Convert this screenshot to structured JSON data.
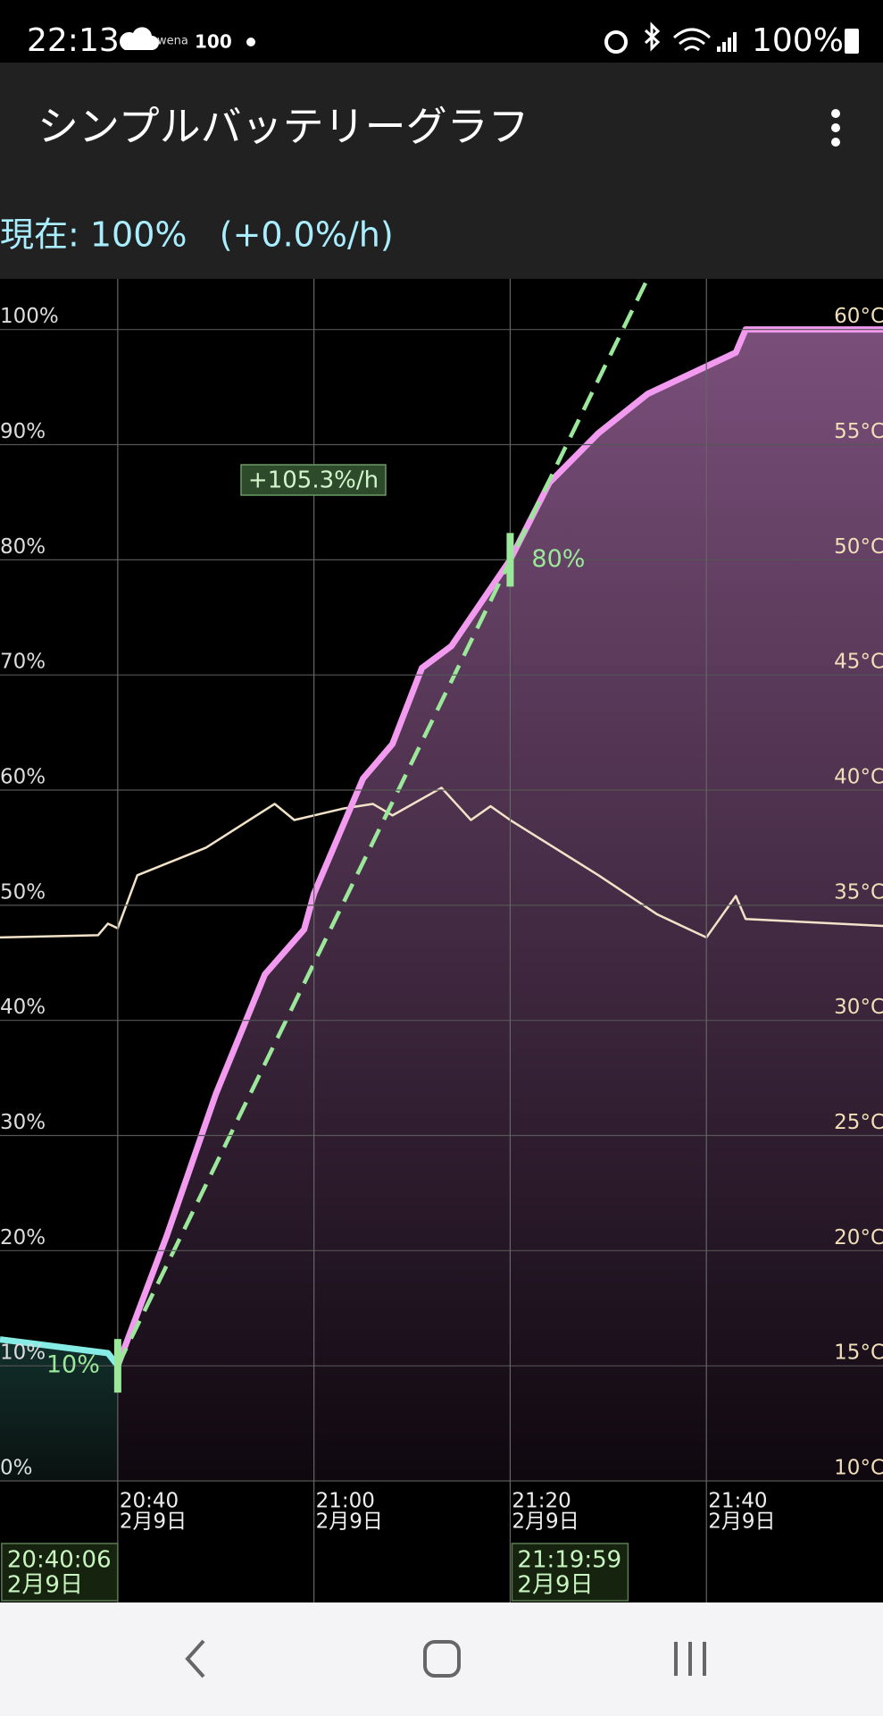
{
  "status_bar": {
    "time": "22:13",
    "wena": "wena",
    "count": "100",
    "battery": "100%"
  },
  "app_bar": {
    "title": "シンプルバッテリーグラフ"
  },
  "summary": "現在: 100%   (+0.0%/h)",
  "chart_data": {
    "type": "line",
    "xlim": [
      "20:28",
      "21:58"
    ],
    "xticks": [
      "20:40",
      "21:00",
      "21:20",
      "21:40"
    ],
    "xtick_date": "2月9日",
    "ylim": [
      0,
      104.4
    ],
    "yticks": [
      {
        "value": 0,
        "label": "0%"
      },
      {
        "value": 10,
        "label": "10%"
      },
      {
        "value": 20,
        "label": "20%"
      },
      {
        "value": 30,
        "label": "30%"
      },
      {
        "value": 40,
        "label": "40%"
      },
      {
        "value": 50,
        "label": "50%"
      },
      {
        "value": 60,
        "label": "60%"
      },
      {
        "value": 70,
        "label": "70%"
      },
      {
        "value": 80,
        "label": "80%"
      },
      {
        "value": 90,
        "label": "90%"
      },
      {
        "value": 100,
        "label": "100%"
      }
    ],
    "y2lim": [
      10,
      62.2
    ],
    "y2ticks": [
      {
        "value": 10,
        "label": "10°C"
      },
      {
        "value": 15,
        "label": "15°C"
      },
      {
        "value": 20,
        "label": "20°C"
      },
      {
        "value": 25,
        "label": "25°C"
      },
      {
        "value": 30,
        "label": "30°C"
      },
      {
        "value": 35,
        "label": "35°C"
      },
      {
        "value": 40,
        "label": "40°C"
      },
      {
        "value": 45,
        "label": "45°C"
      },
      {
        "value": 50,
        "label": "50°C"
      },
      {
        "value": 55,
        "label": "55°C"
      },
      {
        "value": 60,
        "label": "60°C"
      }
    ],
    "grid": true,
    "series": [
      {
        "color": "#86ece6",
        "area": true,
        "x": [
          "20:28",
          "20:39",
          "20:40"
        ],
        "values": [
          12.3,
          11.1,
          10
        ]
      },
      {
        "color": "#f19af0",
        "area": true,
        "x": [
          "20:40",
          "20:45",
          "20:50",
          "20:55",
          "20:59",
          "21:00",
          "21:05",
          "21:08",
          "21:11",
          "21:14",
          "21:20",
          "21:24",
          "21:29",
          "21:34",
          "21:43",
          "21:44",
          "21:58"
        ],
        "values": [
          10,
          21.3,
          33.6,
          44,
          47.9,
          51,
          61,
          64,
          70.6,
          72.5,
          80,
          86.7,
          91,
          94.4,
          98,
          100,
          100
        ]
      },
      {
        "color": "#f2e2c8",
        "axis": "y2",
        "x": [
          "20:28",
          "20:38",
          "20:39",
          "20:40",
          "20:42",
          "20:49",
          "20:56",
          "20:58",
          "21:03",
          "21:06",
          "21:08",
          "21:13",
          "21:16",
          "21:18",
          "21:20",
          "21:29",
          "21:35",
          "21:40",
          "21:43",
          "21:44",
          "21:58"
        ],
        "values": [
          33.6,
          33.7,
          34.2,
          34,
          36.3,
          37.5,
          39.4,
          38.7,
          39.2,
          39.4,
          38.9,
          40.1,
          38.7,
          39.3,
          38.7,
          36.3,
          34.6,
          33.6,
          35.4,
          34.4,
          34.1
        ]
      }
    ],
    "trend": {
      "color": "#9be89a",
      "label": "+105.3%/h",
      "x": [
        "20:40",
        "21:34"
      ],
      "values": [
        10,
        104.4
      ]
    },
    "markers": [
      {
        "x": "20:40",
        "value": 10,
        "value_label": "10%",
        "time": "20:40:06",
        "date": "2月9日"
      },
      {
        "x": "21:20",
        "value": 80,
        "value_label": "80%",
        "time": "21:19:59",
        "date": "2月9日"
      }
    ]
  }
}
